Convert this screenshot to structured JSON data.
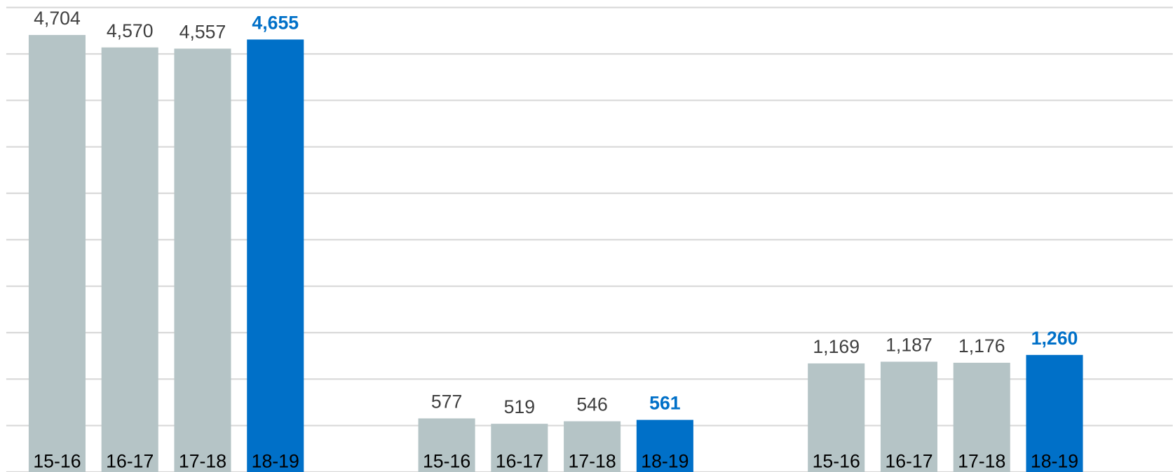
{
  "chart_data": {
    "type": "bar",
    "categories": [
      null,
      null,
      null
    ],
    "series": [
      {
        "name": "15-16",
        "color": "#b5c4c6",
        "values": [
          4704,
          577,
          1169
        ],
        "value_labels": [
          "4,704",
          "577",
          "1,169"
        ]
      },
      {
        "name": "16-17",
        "color": "#b5c4c6",
        "values": [
          4570,
          519,
          1187
        ],
        "value_labels": [
          "4,570",
          "519",
          "1,187"
        ]
      },
      {
        "name": "17-18",
        "color": "#b5c4c6",
        "values": [
          4557,
          546,
          1176
        ],
        "value_labels": [
          "4,557",
          "546",
          "1,176"
        ]
      },
      {
        "name": "18-19",
        "color": "#0070c8",
        "values": [
          4655,
          561,
          1260
        ],
        "value_labels": [
          "4,655",
          "561",
          "1,260"
        ]
      }
    ],
    "ylim": [
      0,
      5000
    ],
    "yticks": [
      0,
      500,
      1000,
      1500,
      2000,
      2500,
      3000,
      3500,
      4000,
      4500,
      5000
    ],
    "grid": true
  }
}
